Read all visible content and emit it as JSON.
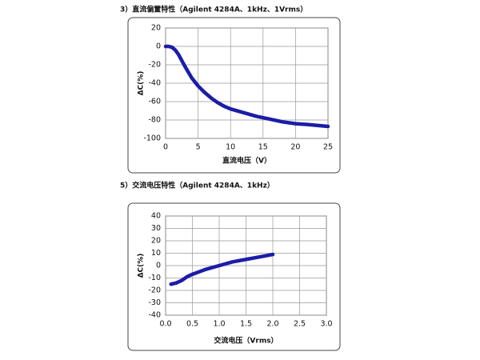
{
  "chart_data": [
    {
      "type": "line",
      "title": "3）直流偏置特性（Agilent 4284A、1kHz、1Vrms）",
      "x_label": "直流电压（V）",
      "y_label": "ΔC(%)",
      "xlim": [
        0,
        25
      ],
      "xticks": [
        0,
        5,
        10,
        15,
        20,
        25
      ],
      "ylim": [
        -100,
        20
      ],
      "yticks": [
        -100,
        -80,
        -60,
        -40,
        -20,
        0,
        20
      ],
      "grid": true,
      "series": [
        {
          "color": "#1c1ca8",
          "x": [
            0,
            0.5,
            1,
            1.5,
            2,
            3,
            4,
            5,
            6,
            7,
            8,
            9,
            10,
            12,
            14,
            16,
            18,
            20,
            22,
            25
          ],
          "values": [
            0,
            0,
            -1,
            -4,
            -9,
            -22,
            -34,
            -43,
            -50,
            -56,
            -61,
            -65,
            -68,
            -72,
            -76,
            -79,
            -82,
            -84,
            -85,
            -87
          ]
        }
      ]
    },
    {
      "type": "line",
      "title": "5）交流电压特性（Agilent 4284A、1kHz）",
      "x_label": "交流电压（Vrms）",
      "y_label": "ΔC(%)",
      "xlim": [
        0,
        3
      ],
      "xticks": [
        {
          "value": 0,
          "label": "0.0"
        },
        0.5,
        {
          "value": 1,
          "label": "1.0"
        },
        1.5,
        {
          "value": 2,
          "label": "2.0"
        },
        2.5,
        {
          "value": 3,
          "label": "3.0"
        }
      ],
      "ylim": [
        -40,
        40
      ],
      "yticks": [
        -40,
        -30,
        -20,
        -10,
        0,
        10,
        20,
        30,
        40
      ],
      "grid": true,
      "series": [
        {
          "color": "#1c1ca8",
          "x": [
            0.1,
            0.2,
            0.3,
            0.4,
            0.5,
            0.75,
            1,
            1.25,
            1.5,
            1.75,
            2
          ],
          "values": [
            -15,
            -14,
            -12,
            -9,
            -7,
            -3,
            0,
            3,
            5,
            7,
            9
          ]
        }
      ]
    }
  ]
}
